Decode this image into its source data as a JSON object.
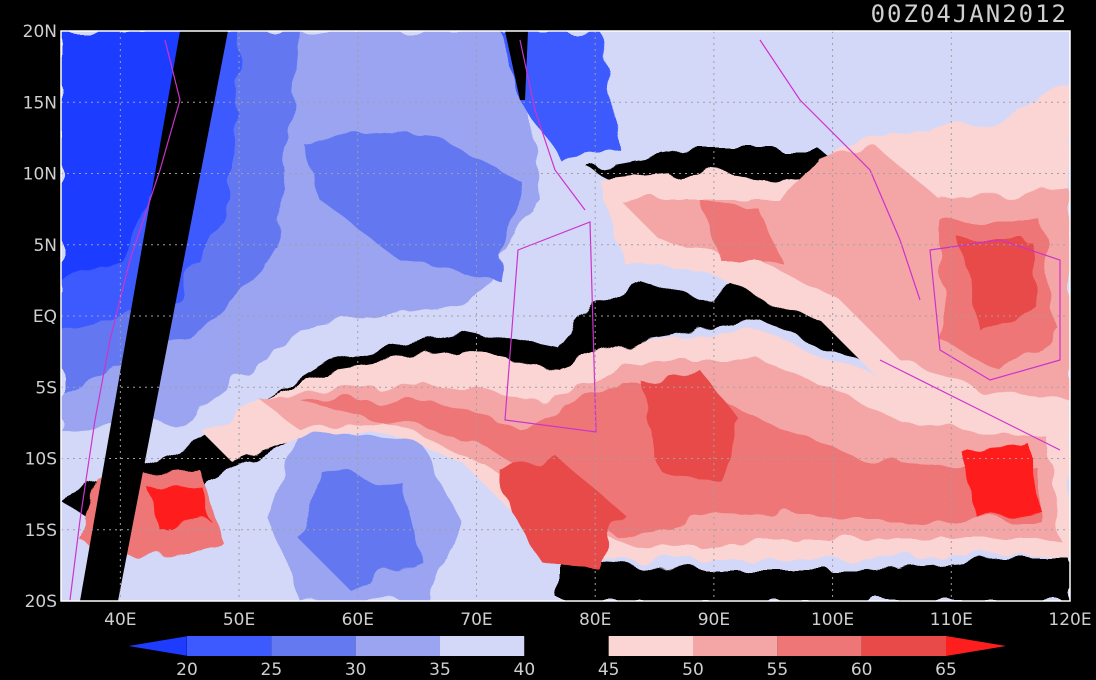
{
  "timestamp": "00Z04JAN2012",
  "lat_ticks": [
    "20N",
    "15N",
    "10N",
    "5N",
    "EQ",
    "5S",
    "10S",
    "15S",
    "20S"
  ],
  "lon_ticks": [
    "40E",
    "50E",
    "60E",
    "70E",
    "80E",
    "90E",
    "100E",
    "110E",
    "120E"
  ],
  "colorbar": {
    "labels": [
      "20",
      "25",
      "30",
      "35",
      "40",
      "45",
      "50",
      "55",
      "60",
      "65"
    ],
    "colors": [
      "#1e3cff",
      "#3c5aff",
      "#6478f0",
      "#9aa4f0",
      "#d4d8f8",
      "#000000",
      "#fbd4d4",
      "#f4a6a6",
      "#ee7676",
      "#e84a4a",
      "#ff1e1e"
    ]
  },
  "colors": {
    "background": "#000000",
    "coast": "#cc33cc",
    "grid": "#a0a0a0",
    "frame": "#ffffff"
  }
}
